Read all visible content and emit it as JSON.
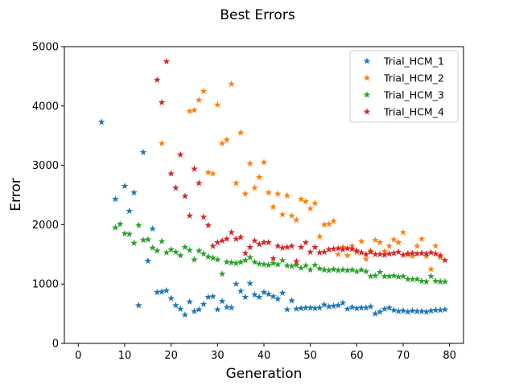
{
  "chart_data": {
    "type": "scatter",
    "title": "Best Errors",
    "xlabel": "Generation",
    "ylabel": "Error",
    "xlim": [
      -3,
      83
    ],
    "ylim": [
      0,
      5000
    ],
    "xticks": [
      0,
      10,
      20,
      30,
      40,
      50,
      60,
      70,
      80
    ],
    "yticks": [
      0,
      1000,
      2000,
      3000,
      4000,
      5000
    ],
    "grid": false,
    "legend_position": "top-right",
    "marker": "star",
    "series": [
      {
        "name": "Trial_HCM_1",
        "color": "#1f77b4",
        "points": [
          [
            5,
            3730
          ],
          [
            8,
            2430
          ],
          [
            10,
            2650
          ],
          [
            11,
            2230
          ],
          [
            12,
            2540
          ],
          [
            13,
            640
          ],
          [
            14,
            3220
          ],
          [
            15,
            1390
          ],
          [
            16,
            1930
          ],
          [
            17,
            860
          ],
          [
            18,
            870
          ],
          [
            19,
            890
          ],
          [
            20,
            760
          ],
          [
            21,
            640
          ],
          [
            22,
            580
          ],
          [
            23,
            480
          ],
          [
            24,
            700
          ],
          [
            25,
            540
          ],
          [
            26,
            570
          ],
          [
            27,
            660
          ],
          [
            28,
            780
          ],
          [
            29,
            790
          ],
          [
            30,
            570
          ],
          [
            31,
            710
          ],
          [
            32,
            610
          ],
          [
            33,
            600
          ],
          [
            34,
            1000
          ],
          [
            35,
            880
          ],
          [
            36,
            780
          ],
          [
            37,
            1010
          ],
          [
            38,
            820
          ],
          [
            39,
            780
          ],
          [
            40,
            860
          ],
          [
            41,
            830
          ],
          [
            42,
            790
          ],
          [
            43,
            750
          ],
          [
            44,
            850
          ],
          [
            45,
            570
          ],
          [
            46,
            720
          ],
          [
            47,
            580
          ],
          [
            48,
            590
          ],
          [
            49,
            600
          ],
          [
            50,
            600
          ],
          [
            51,
            590
          ],
          [
            52,
            600
          ],
          [
            53,
            650
          ],
          [
            54,
            620
          ],
          [
            55,
            630
          ],
          [
            56,
            640
          ],
          [
            57,
            680
          ],
          [
            58,
            580
          ],
          [
            59,
            610
          ],
          [
            60,
            590
          ],
          [
            61,
            600
          ],
          [
            62,
            600
          ],
          [
            63,
            620
          ],
          [
            64,
            500
          ],
          [
            65,
            530
          ],
          [
            66,
            580
          ],
          [
            67,
            600
          ],
          [
            68,
            560
          ],
          [
            69,
            540
          ],
          [
            70,
            550
          ],
          [
            71,
            530
          ],
          [
            72,
            550
          ],
          [
            73,
            540
          ],
          [
            74,
            540
          ],
          [
            75,
            530
          ],
          [
            76,
            550
          ],
          [
            77,
            560
          ],
          [
            78,
            560
          ],
          [
            79,
            570
          ]
        ]
      },
      {
        "name": "Trial_HCM_2",
        "color": "#ff7f0e",
        "points": [
          [
            18,
            3370
          ],
          [
            24,
            3910
          ],
          [
            25,
            3930
          ],
          [
            26,
            4100
          ],
          [
            27,
            4250
          ],
          [
            28,
            2880
          ],
          [
            29,
            2860
          ],
          [
            30,
            4020
          ],
          [
            31,
            3370
          ],
          [
            32,
            3430
          ],
          [
            33,
            4370
          ],
          [
            34,
            2700
          ],
          [
            35,
            3550
          ],
          [
            36,
            2520
          ],
          [
            37,
            3030
          ],
          [
            38,
            2620
          ],
          [
            39,
            2800
          ],
          [
            40,
            3050
          ],
          [
            41,
            2540
          ],
          [
            42,
            2300
          ],
          [
            43,
            2520
          ],
          [
            44,
            2170
          ],
          [
            45,
            2490
          ],
          [
            46,
            2150
          ],
          [
            47,
            2080
          ],
          [
            48,
            2430
          ],
          [
            49,
            2390
          ],
          [
            50,
            2270
          ],
          [
            51,
            2360
          ],
          [
            52,
            1800
          ],
          [
            53,
            2000
          ],
          [
            54,
            2010
          ],
          [
            55,
            2060
          ],
          [
            56,
            1500
          ],
          [
            57,
            1620
          ],
          [
            58,
            1480
          ],
          [
            59,
            1640
          ],
          [
            60,
            1540
          ],
          [
            61,
            1720
          ],
          [
            62,
            1420
          ],
          [
            63,
            1560
          ],
          [
            64,
            1740
          ],
          [
            65,
            1700
          ],
          [
            66,
            1550
          ],
          [
            67,
            1640
          ],
          [
            68,
            1750
          ],
          [
            69,
            1700
          ],
          [
            70,
            1870
          ],
          [
            71,
            1520
          ],
          [
            72,
            1470
          ],
          [
            73,
            1640
          ],
          [
            74,
            1760
          ],
          [
            75,
            1470
          ],
          [
            76,
            1250
          ],
          [
            77,
            1640
          ],
          [
            78,
            1450
          ]
        ]
      },
      {
        "name": "Trial_HCM_3",
        "color": "#2ca02c",
        "points": [
          [
            8,
            1950
          ],
          [
            9,
            2010
          ],
          [
            10,
            1850
          ],
          [
            11,
            1840
          ],
          [
            12,
            1690
          ],
          [
            13,
            1990
          ],
          [
            14,
            1740
          ],
          [
            15,
            1750
          ],
          [
            16,
            1610
          ],
          [
            17,
            1560
          ],
          [
            18,
            1720
          ],
          [
            19,
            1530
          ],
          [
            20,
            1580
          ],
          [
            21,
            1540
          ],
          [
            22,
            1480
          ],
          [
            23,
            1620
          ],
          [
            24,
            1570
          ],
          [
            25,
            1410
          ],
          [
            26,
            1560
          ],
          [
            27,
            1510
          ],
          [
            28,
            1460
          ],
          [
            29,
            1440
          ],
          [
            30,
            1410
          ],
          [
            31,
            1170
          ],
          [
            32,
            1370
          ],
          [
            33,
            1360
          ],
          [
            34,
            1350
          ],
          [
            35,
            1370
          ],
          [
            36,
            1400
          ],
          [
            37,
            1450
          ],
          [
            38,
            1370
          ],
          [
            39,
            1340
          ],
          [
            40,
            1330
          ],
          [
            41,
            1320
          ],
          [
            42,
            1350
          ],
          [
            43,
            1330
          ],
          [
            44,
            1400
          ],
          [
            45,
            1310
          ],
          [
            46,
            1300
          ],
          [
            47,
            1320
          ],
          [
            48,
            1270
          ],
          [
            49,
            1310
          ],
          [
            50,
            1240
          ],
          [
            51,
            1320
          ],
          [
            52,
            1260
          ],
          [
            53,
            1240
          ],
          [
            54,
            1230
          ],
          [
            55,
            1250
          ],
          [
            56,
            1230
          ],
          [
            57,
            1240
          ],
          [
            58,
            1230
          ],
          [
            59,
            1240
          ],
          [
            60,
            1210
          ],
          [
            61,
            1240
          ],
          [
            62,
            1210
          ],
          [
            63,
            1130
          ],
          [
            64,
            1140
          ],
          [
            65,
            1200
          ],
          [
            66,
            1130
          ],
          [
            67,
            1130
          ],
          [
            68,
            1140
          ],
          [
            69,
            1120
          ],
          [
            70,
            1130
          ],
          [
            71,
            1080
          ],
          [
            72,
            1080
          ],
          [
            73,
            1080
          ],
          [
            74,
            1050
          ],
          [
            75,
            1040
          ],
          [
            76,
            1130
          ],
          [
            77,
            1050
          ],
          [
            78,
            1040
          ],
          [
            79,
            1040
          ]
        ]
      },
      {
        "name": "Trial_HCM_4",
        "color": "#d62728",
        "points": [
          [
            17,
            4440
          ],
          [
            18,
            4060
          ],
          [
            19,
            4750
          ],
          [
            20,
            2860
          ],
          [
            21,
            2620
          ],
          [
            22,
            3180
          ],
          [
            23,
            2480
          ],
          [
            24,
            2150
          ],
          [
            25,
            2940
          ],
          [
            26,
            2700
          ],
          [
            27,
            2130
          ],
          [
            28,
            1990
          ],
          [
            29,
            1640
          ],
          [
            30,
            1700
          ],
          [
            31,
            1730
          ],
          [
            32,
            1760
          ],
          [
            33,
            1870
          ],
          [
            34,
            1760
          ],
          [
            35,
            1790
          ],
          [
            36,
            1520
          ],
          [
            37,
            1620
          ],
          [
            38,
            1730
          ],
          [
            39,
            1670
          ],
          [
            40,
            1700
          ],
          [
            41,
            1700
          ],
          [
            42,
            1430
          ],
          [
            43,
            1640
          ],
          [
            44,
            1610
          ],
          [
            45,
            1620
          ],
          [
            46,
            1640
          ],
          [
            47,
            1380
          ],
          [
            48,
            1620
          ],
          [
            49,
            1700
          ],
          [
            50,
            1540
          ],
          [
            51,
            1620
          ],
          [
            52,
            1530
          ],
          [
            53,
            1540
          ],
          [
            54,
            1580
          ],
          [
            55,
            1590
          ],
          [
            56,
            1600
          ],
          [
            57,
            1580
          ],
          [
            58,
            1600
          ],
          [
            59,
            1590
          ],
          [
            60,
            1560
          ],
          [
            61,
            1530
          ],
          [
            62,
            1500
          ],
          [
            63,
            1540
          ],
          [
            64,
            1500
          ],
          [
            65,
            1500
          ],
          [
            66,
            1490
          ],
          [
            67,
            1510
          ],
          [
            68,
            1520
          ],
          [
            69,
            1540
          ],
          [
            70,
            1490
          ],
          [
            71,
            1500
          ],
          [
            72,
            1520
          ],
          [
            73,
            1510
          ],
          [
            74,
            1520
          ],
          [
            75,
            1510
          ],
          [
            76,
            1530
          ],
          [
            77,
            1510
          ],
          [
            78,
            1480
          ],
          [
            79,
            1400
          ]
        ]
      }
    ]
  }
}
